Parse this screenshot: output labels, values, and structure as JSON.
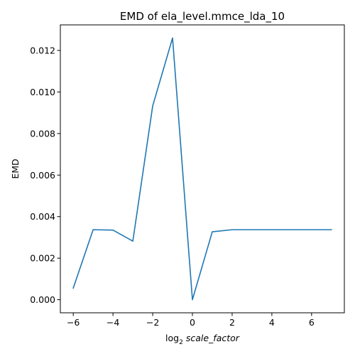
{
  "chart_data": {
    "type": "line",
    "title": "EMD of ela_level.mmce_lda_10",
    "xlabel_base": "log",
    "xlabel_subscript": "2",
    "xlabel_var": "scale_factor",
    "ylabel": "EMD",
    "xlim": [
      -6.65,
      7.65
    ],
    "ylim": [
      -0.00063,
      0.01323
    ],
    "x_ticks": [
      -6,
      -4,
      -2,
      0,
      2,
      4,
      6
    ],
    "x_tick_labels": [
      "−6",
      "−4",
      "−2",
      "0",
      "2",
      "4",
      "6"
    ],
    "y_ticks": [
      0.0,
      0.002,
      0.004,
      0.006,
      0.008,
      0.01,
      0.012
    ],
    "y_tick_labels": [
      "0.000",
      "0.002",
      "0.004",
      "0.006",
      "0.008",
      "0.010",
      "0.012"
    ],
    "grid": false,
    "series": [
      {
        "color": "#1f77b4",
        "x": [
          -6,
          -5,
          -4,
          -3,
          -2,
          -1,
          0,
          1,
          2,
          3,
          4,
          5,
          6,
          7
        ],
        "y": [
          0.00056,
          0.00337,
          0.00335,
          0.00282,
          0.00933,
          0.0126,
          0.0,
          0.00327,
          0.00337,
          0.00337,
          0.00337,
          0.00337,
          0.00337,
          0.00337
        ]
      }
    ]
  }
}
